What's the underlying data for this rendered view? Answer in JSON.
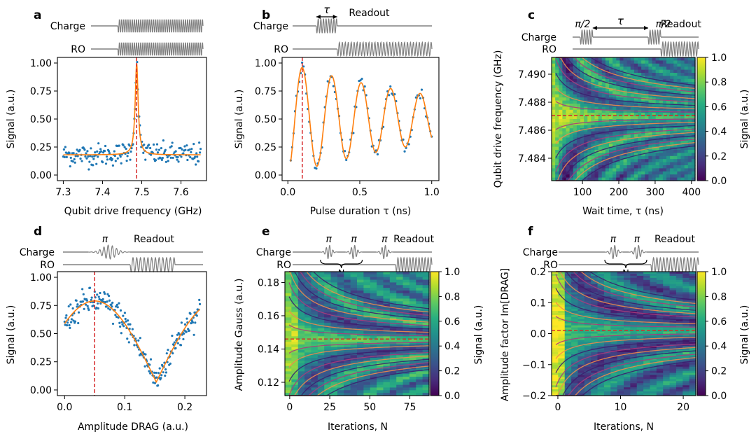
{
  "colors": {
    "data_point": "#1f77b4",
    "fit_line": "#ff7f0e",
    "marker_line": "#d62728",
    "pulse": "#808080",
    "contour_dark": "#3b1f6e",
    "contour_mid": "#a83c7c",
    "contour_light": "#f08a4b"
  },
  "chart_data": [
    {
      "panel": "a",
      "type": "scatter",
      "xlabel": "Qubit drive frequency (GHz)",
      "ylabel": "Signal (a.u.)",
      "xlim": [
        7.285,
        7.665
      ],
      "ylim": [
        -0.05,
        1.05
      ],
      "xticks": [
        "7.3",
        "7.4",
        "7.5",
        "7.6"
      ],
      "yticks": [
        "0.00",
        "0.25",
        "0.50",
        "0.75",
        "1.00"
      ],
      "series": [
        {
          "name": "measured",
          "style": "points",
          "model": "lorentzian",
          "n": 200,
          "x_range": [
            7.3,
            7.65
          ],
          "center": 7.487,
          "width": 0.0045,
          "baseline": 0.18,
          "amplitude": 0.82,
          "noise": 0.05
        },
        {
          "name": "fit",
          "style": "line",
          "model": "lorentzian",
          "center": 7.487,
          "width": 0.0045,
          "baseline": 0.18,
          "amplitude": 0.82
        }
      ],
      "vline": 7.487,
      "schematic": {
        "rows": [
          {
            "label": "Charge",
            "pulses": [
              {
                "start": 0.24,
                "end": 1.0,
                "cycles": 40
              }
            ]
          },
          {
            "label": "RO",
            "pulses": [
              {
                "start": 0.24,
                "end": 1.0,
                "cycles": 40
              }
            ]
          }
        ],
        "annotations": []
      }
    },
    {
      "panel": "b",
      "type": "scatter",
      "xlabel": "Pulse duration τ (ns)",
      "ylabel": "Signal (a.u.)",
      "xlim": [
        -0.04,
        1.05
      ],
      "ylim": [
        -0.05,
        1.05
      ],
      "xticks": [
        "0.0",
        "0.5",
        "1.0"
      ],
      "yticks": [
        "0.00",
        "0.25",
        "0.50",
        "0.75",
        "1.00"
      ],
      "series": [
        {
          "name": "measured",
          "style": "points",
          "model": "damped_cosine",
          "n": 100,
          "x_range": [
            0.02,
            1.0
          ],
          "period": 0.205,
          "phase_peak": 0.1,
          "decay": 0.85,
          "center": 0.5,
          "amplitude": 0.5,
          "noise": 0.04
        },
        {
          "name": "fit",
          "style": "line",
          "model": "damped_cosine",
          "period": 0.205,
          "phase_peak": 0.1,
          "decay": 0.85,
          "center": 0.5,
          "amplitude": 0.5
        }
      ],
      "vline": 0.1,
      "schematic": {
        "rows": [
          {
            "label": "Charge",
            "pulses": [
              {
                "start": 0.17,
                "end": 0.32,
                "cycles": 8
              }
            ]
          },
          {
            "label": "RO",
            "pulses": [
              {
                "start": 0.32,
                "end": 1.0,
                "cycles": 32
              }
            ]
          }
        ],
        "annotations": [
          {
            "text": "τ",
            "kind": "arrow",
            "from": 0.17,
            "to": 0.32
          },
          {
            "text": "Readout",
            "kind": "label",
            "at": 0.55
          }
        ]
      }
    },
    {
      "panel": "c",
      "type": "heatmap",
      "xlabel": "Wait time, τ (ns)",
      "ylabel": "Qubit drive frequency (GHz)",
      "xlim": [
        15,
        410
      ],
      "ylim": [
        7.4824,
        7.4912
      ],
      "xticks": [
        "100",
        "200",
        "300",
        "400"
      ],
      "yticks": [
        "7.484",
        "7.486",
        "7.488",
        "7.490"
      ],
      "grid_cells": [
        40,
        40
      ],
      "model": "ramsey",
      "center_frequency": 7.48705,
      "hline": 7.48705,
      "colorbar": {
        "label": "Signal (a.u.)",
        "ticks": [
          "0.0",
          "0.2",
          "0.4",
          "0.6",
          "0.8",
          "1.0"
        ]
      },
      "schematic": {
        "rows": [
          {
            "label": "Charge",
            "pulses": [
              {
                "start": 0.06,
                "end": 0.16,
                "cycles": 5
              },
              {
                "start": 0.6,
                "end": 0.7,
                "cycles": 5
              }
            ]
          },
          {
            "label": "RO",
            "pulses": [
              {
                "start": 0.7,
                "end": 1.0,
                "cycles": 14
              }
            ]
          }
        ],
        "annotations": [
          {
            "text": "π/2",
            "kind": "label",
            "at": 0.08
          },
          {
            "text": "π/2",
            "kind": "label",
            "at": 0.72
          },
          {
            "text": "τ",
            "kind": "arrow",
            "from": 0.16,
            "to": 0.6
          },
          {
            "text": "Readout",
            "kind": "label",
            "at": 0.86
          }
        ]
      }
    },
    {
      "panel": "d",
      "type": "scatter",
      "xlabel": "Amplitude DRAG (a.u.)",
      "ylabel": "Signal (a.u.)",
      "xlim": [
        -0.012,
        0.236
      ],
      "ylim": [
        -0.05,
        1.05
      ],
      "xticks": [
        "0.0",
        "0.1",
        "0.2"
      ],
      "yticks": [
        "0.00",
        "0.25",
        "0.50",
        "0.75",
        "1.00"
      ],
      "series": [
        {
          "name": "measured",
          "style": "points",
          "model": "abs_cosine",
          "n": 230,
          "x_range": [
            0.0,
            0.225
          ],
          "period": 0.205,
          "peak": 0.05,
          "baseline": 0.07,
          "amplitude": 0.72,
          "noise": 0.06
        },
        {
          "name": "fit",
          "style": "line",
          "model": "abs_cosine",
          "period": 0.205,
          "peak": 0.05,
          "baseline": 0.07,
          "amplitude": 0.72
        }
      ],
      "vline": 0.05,
      "schematic": {
        "rows": [
          {
            "label": "Charge",
            "pulses": [
              {
                "start": 0.18,
                "end": 0.48,
                "cycles": 10,
                "envelope": "gauss"
              }
            ]
          },
          {
            "label": "RO",
            "pulses": [
              {
                "start": 0.48,
                "end": 0.8,
                "cycles": 12
              }
            ]
          }
        ],
        "annotations": [
          {
            "text": "π",
            "kind": "label",
            "at": 0.3
          },
          {
            "text": "Readout",
            "kind": "label",
            "at": 0.65
          }
        ]
      }
    },
    {
      "panel": "e",
      "type": "heatmap",
      "xlabel": "Iterations, N",
      "ylabel": "Amplitude Gauss (a.u.)",
      "xlim": [
        -3,
        87
      ],
      "ylim": [
        0.112,
        0.1865
      ],
      "xticks": [
        "0",
        "25",
        "50",
        "75"
      ],
      "yticks": [
        "0.12",
        "0.14",
        "0.16",
        "0.18"
      ],
      "grid_cells": [
        22,
        46
      ],
      "model": "pi_error",
      "center_amplitude": 0.146,
      "hline": 0.146,
      "colorbar": {
        "label": "Signal (a.u.)",
        "ticks": [
          "0.0",
          "0.2",
          "0.4",
          "0.6",
          "0.8",
          "1.0"
        ]
      },
      "schematic": {
        "rows": [
          {
            "label": "Charge",
            "pulses": [
              {
                "start": 0.2,
                "end": 0.32,
                "cycles": 5,
                "envelope": "gauss"
              },
              {
                "start": 0.38,
                "end": 0.5,
                "cycles": 5,
                "envelope": "gauss"
              },
              {
                "start": 0.6,
                "end": 0.72,
                "cycles": 5,
                "envelope": "gauss"
              }
            ]
          },
          {
            "label": "RO",
            "pulses": [
              {
                "start": 0.74,
                "end": 1.0,
                "cycles": 12
              }
            ]
          }
        ],
        "annotations": [
          {
            "text": "π",
            "kind": "label",
            "at": 0.26
          },
          {
            "text": "π",
            "kind": "label",
            "at": 0.44
          },
          {
            "text": "π",
            "kind": "label",
            "at": 0.66
          },
          {
            "text": "Readout",
            "kind": "label",
            "at": 0.87
          },
          {
            "text": "N",
            "kind": "brace",
            "from": 0.2,
            "to": 0.5
          }
        ]
      }
    },
    {
      "panel": "f",
      "type": "heatmap",
      "xlabel": "Iterations, N",
      "ylabel": "Amplitude factor Im[DRAG]",
      "xlim": [
        -1,
        22
      ],
      "ylim": [
        -0.2,
        0.2
      ],
      "xticks": [
        "0",
        "10",
        "20"
      ],
      "yticks": [
        "−0.2",
        "−0.1",
        "0.0",
        "0.1",
        "0.2"
      ],
      "grid_cells": [
        22,
        60
      ],
      "model": "drag_error",
      "center_factor": 0.01,
      "hline": 0.01,
      "colorbar": {
        "label": "Signal (a.u.)",
        "ticks": [
          "0.0",
          "0.2",
          "0.4",
          "0.6",
          "0.8",
          "1.0"
        ]
      },
      "schematic": {
        "rows": [
          {
            "label": "Charge",
            "pulses": [
              {
                "start": 0.33,
                "end": 0.46,
                "cycles": 5,
                "envelope": "gauss"
              },
              {
                "start": 0.5,
                "end": 0.63,
                "cycles": 5,
                "envelope": "gauss"
              }
            ]
          },
          {
            "label": "RO",
            "pulses": [
              {
                "start": 0.66,
                "end": 1.0,
                "cycles": 14
              }
            ]
          }
        ],
        "annotations": [
          {
            "text": "π",
            "kind": "label",
            "at": 0.39
          },
          {
            "text": "π",
            "kind": "label",
            "at": 0.56
          },
          {
            "text": "Readout",
            "kind": "label",
            "at": 0.83
          },
          {
            "text": "N",
            "kind": "brace",
            "from": 0.33,
            "to": 0.63
          }
        ]
      }
    }
  ]
}
